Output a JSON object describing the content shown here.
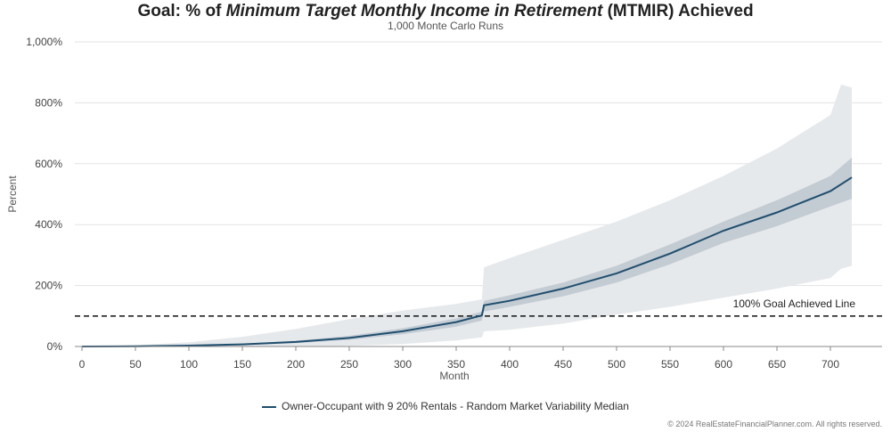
{
  "chart_data": {
    "type": "line",
    "title": {
      "prefix": "Goal: % of ",
      "emphasis": "Minimum Target Monthly Income in Retirement",
      "suffix": " (MTMIR) Achieved"
    },
    "subtitle": "1,000 Monte Carlo Runs",
    "xlabel": "Month",
    "ylabel": "Percent",
    "xlim": [
      0,
      720
    ],
    "ylim": [
      0,
      1000
    ],
    "x_ticks": [
      0,
      50,
      100,
      150,
      200,
      250,
      300,
      350,
      400,
      450,
      500,
      550,
      600,
      650,
      700
    ],
    "y_ticks": [
      0,
      200,
      400,
      600,
      800,
      1000
    ],
    "y_tick_labels": [
      "0%",
      "200%",
      "400%",
      "600%",
      "800%",
      "1,000%"
    ],
    "grid": true,
    "legend_position": "bottom",
    "reference_line": {
      "y": 100,
      "label": "100% Goal Achieved Line",
      "style": "dashed"
    },
    "series": [
      {
        "name": "Owner-Occupant with 9 20% Rentals - Random Market Variability Median",
        "color": "#1f4e6e",
        "x": [
          0,
          50,
          100,
          150,
          200,
          250,
          300,
          350,
          374,
          376,
          400,
          450,
          500,
          550,
          600,
          650,
          700,
          720
        ],
        "values": [
          0,
          1,
          3,
          7,
          15,
          28,
          50,
          80,
          102,
          135,
          150,
          190,
          240,
          305,
          380,
          440,
          510,
          555
        ]
      },
      {
        "name": "inner band",
        "color": "#c3cbd3",
        "x": [
          0,
          50,
          100,
          150,
          200,
          250,
          300,
          350,
          374,
          376,
          400,
          450,
          500,
          550,
          600,
          650,
          700,
          720
        ],
        "upper": [
          0,
          1,
          4,
          9,
          19,
          35,
          60,
          92,
          115,
          150,
          168,
          210,
          265,
          335,
          410,
          480,
          560,
          620
        ],
        "lower": [
          0,
          0,
          2,
          5,
          11,
          22,
          40,
          65,
          85,
          115,
          130,
          165,
          210,
          270,
          340,
          395,
          460,
          485
        ]
      },
      {
        "name": "outer band",
        "color": "#e6e9ec",
        "x": [
          0,
          50,
          100,
          150,
          200,
          250,
          300,
          350,
          374,
          376,
          400,
          450,
          500,
          550,
          600,
          650,
          700,
          710,
          720
        ],
        "upper": [
          0,
          4,
          14,
          32,
          58,
          90,
          118,
          140,
          155,
          260,
          290,
          350,
          410,
          480,
          560,
          650,
          760,
          860,
          850
        ],
        "lower": [
          0,
          0,
          0,
          0,
          0,
          2,
          8,
          20,
          30,
          50,
          55,
          75,
          105,
          130,
          160,
          190,
          225,
          255,
          265
        ]
      }
    ]
  },
  "credit": "© 2024 RealEstateFinancialPlanner.com. All rights reserved."
}
